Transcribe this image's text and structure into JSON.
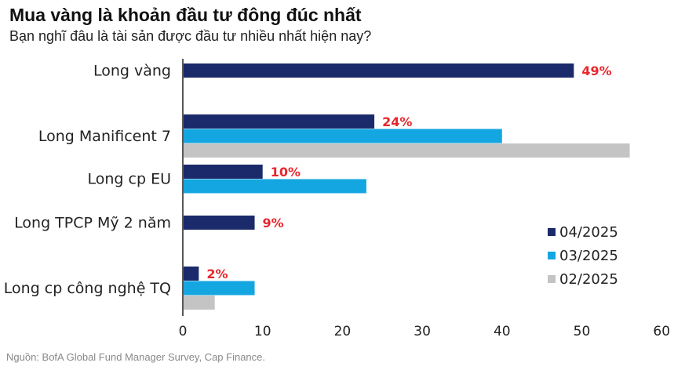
{
  "title": "Mua vàng là khoản đầu tư đông đúc nhất",
  "subtitle": "Bạn nghĩ đâu là tài sản được đầu tư nhiều nhất hiện nay?",
  "source": "Nguồn: BofA Global Fund Manager Survey, Cap Finance.",
  "colors": {
    "series_04_2025": "#1b2a6b",
    "series_03_2025": "#14a6e0",
    "series_02_2025": "#c4c4c4",
    "data_label": "#e8262d",
    "axis": "#222222"
  },
  "chart_data": {
    "type": "bar",
    "orientation": "horizontal",
    "title": "Mua vàng là khoản đầu tư đông đúc nhất",
    "subtitle": "Bạn nghĩ đâu là tài sản được đầu tư nhiều nhất hiện nay?",
    "categories": [
      "Long vàng",
      "Long Manificent 7",
      "Long cp EU",
      "Long TPCP Mỹ 2 năm",
      "Long cp công nghệ TQ"
    ],
    "series": [
      {
        "name": "04/2025",
        "values": [
          49,
          24,
          10,
          9,
          2
        ],
        "labels": [
          "49%",
          "24%",
          "10%",
          "9%",
          "2%"
        ]
      },
      {
        "name": "03/2025",
        "values": [
          null,
          40,
          23,
          null,
          9
        ]
      },
      {
        "name": "02/2025",
        "values": [
          null,
          56,
          null,
          null,
          4
        ]
      }
    ],
    "xlim": [
      0,
      60
    ],
    "xticks": [
      "0",
      "10",
      "20",
      "30",
      "40",
      "50",
      "60"
    ],
    "xlabel": "",
    "ylabel": "",
    "grid": false,
    "legend_position": "bottom-right"
  }
}
